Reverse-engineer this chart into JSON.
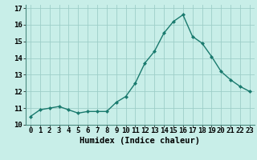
{
  "x": [
    0,
    1,
    2,
    3,
    4,
    5,
    6,
    7,
    8,
    9,
    10,
    11,
    12,
    13,
    14,
    15,
    16,
    17,
    18,
    19,
    20,
    21,
    22,
    23
  ],
  "y": [
    10.5,
    10.9,
    11.0,
    11.1,
    10.9,
    10.7,
    10.8,
    10.8,
    10.8,
    11.35,
    11.7,
    12.5,
    13.7,
    14.4,
    15.5,
    16.2,
    16.6,
    15.3,
    14.9,
    14.1,
    13.2,
    12.7,
    12.3,
    12.0
  ],
  "xlabel": "Humidex (Indice chaleur)",
  "xlim": [
    -0.5,
    23.5
  ],
  "ylim": [
    10.0,
    17.2
  ],
  "yticks": [
    10,
    11,
    12,
    13,
    14,
    15,
    16,
    17
  ],
  "xtick_labels": [
    "0",
    "1",
    "2",
    "3",
    "4",
    "5",
    "6",
    "7",
    "8",
    "9",
    "10",
    "11",
    "12",
    "13",
    "14",
    "15",
    "16",
    "17",
    "18",
    "19",
    "20",
    "21",
    "22",
    "23"
  ],
  "line_color": "#1a7a6e",
  "marker_color": "#1a7a6e",
  "bg_color": "#c8eee8",
  "grid_color": "#9dcec8",
  "tick_fontsize": 6.5,
  "xlabel_fontsize": 7.5
}
